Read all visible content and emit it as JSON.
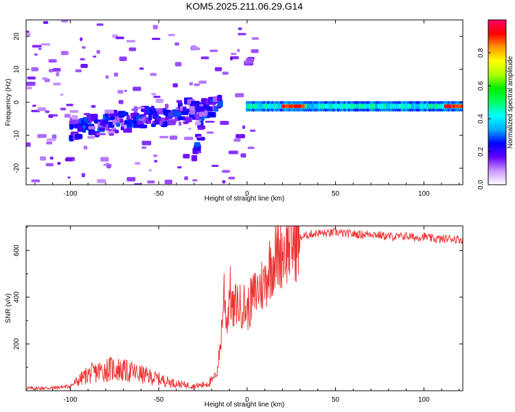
{
  "title": "KOM5.2025.211.06.29.G14",
  "chart_data": [
    {
      "type": "heatmap",
      "xlabel": "Height of straight line (km)",
      "ylabel": "Frequency (Hz)",
      "xlim": [
        -125,
        122
      ],
      "ylim": [
        -25,
        25
      ],
      "xticks": [
        -100,
        -50,
        0,
        50,
        100
      ],
      "yticks": [
        -20,
        -10,
        0,
        10,
        20
      ],
      "grid": false,
      "colorbar": {
        "label": "Normalized spectral amplitude",
        "range": [
          0,
          1
        ],
        "ticks": [
          0.0,
          0.2,
          0.4,
          0.6,
          0.8
        ],
        "tick_labels": [
          "0.0",
          "0.2",
          "0.4",
          "0.6",
          "0.8"
        ],
        "colors": [
          "#ffffff",
          "#cc99ff",
          "#6600ff",
          "#0000ff",
          "#00aaff",
          "#00ffff",
          "#00ff66",
          "#00ee00",
          "#aaff00",
          "#ffff00",
          "#ff9900",
          "#ff0000",
          "#ff0066"
        ]
      },
      "features": [
        {
          "name": "stationary",
          "x_range": [
            0,
            122
          ],
          "freq": -1.2,
          "amplitude": 0.55
        },
        {
          "name": "peak",
          "x_range": [
            20,
            32
          ],
          "freq": -1.2,
          "amplitude": 0.95
        },
        {
          "name": "peak",
          "x_range": [
            112,
            122
          ],
          "freq": -1.2,
          "amplitude": 0.95
        },
        {
          "name": "sloping",
          "x_range": [
            -100,
            -15
          ],
          "freq_range": [
            -8,
            -1
          ],
          "amplitude": 0.2
        },
        {
          "name": "streak",
          "x_range": [
            -30,
            -25
          ],
          "freq_range": [
            -15,
            -5
          ],
          "amplitude": 0.2
        }
      ]
    },
    {
      "type": "line",
      "xlabel": "Height of straight line (km)",
      "ylabel": "SNR (v/v)",
      "xlim": [
        -125,
        122
      ],
      "ylim": [
        0,
        705
      ],
      "xticks": [
        -100,
        -50,
        0,
        50,
        100
      ],
      "yticks": [
        200,
        400,
        600
      ],
      "color": "#ee3333",
      "grid": false,
      "x": [
        -125,
        -110,
        -100,
        -95,
        -90,
        -85,
        -80,
        -75,
        -70,
        -65,
        -60,
        -55,
        -50,
        -45,
        -40,
        -35,
        -30,
        -25,
        -20,
        -17,
        -15,
        -13,
        -12,
        -11,
        -10,
        -8,
        -6,
        -4,
        -2,
        0,
        2,
        5,
        8,
        10,
        12,
        15,
        18,
        20,
        22,
        25,
        28,
        30,
        35,
        40,
        45,
        50,
        55,
        60,
        65,
        70,
        75,
        80,
        85,
        90,
        95,
        100,
        105,
        110,
        115,
        122
      ],
      "y": [
        10,
        12,
        20,
        45,
        70,
        80,
        90,
        95,
        85,
        80,
        70,
        60,
        50,
        40,
        30,
        25,
        20,
        25,
        40,
        80,
        200,
        430,
        330,
        290,
        450,
        330,
        380,
        360,
        370,
        340,
        380,
        420,
        450,
        460,
        520,
        560,
        590,
        605,
        615,
        630,
        640,
        655,
        668,
        675,
        672,
        678,
        672,
        670,
        668,
        672,
        665,
        660,
        658,
        662,
        655,
        660,
        650,
        648,
        652,
        645
      ]
    }
  ]
}
